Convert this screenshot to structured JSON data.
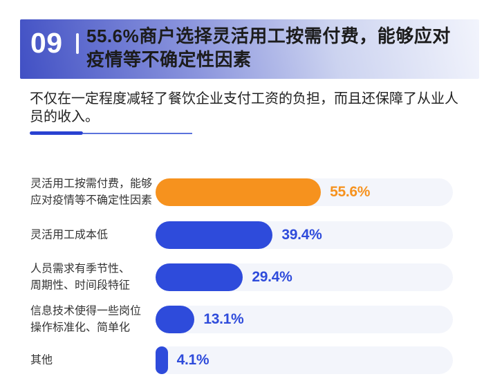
{
  "header": {
    "number": "09",
    "title": "55.6%商户选择灵活用工按需付费，能够应对\n疫情等不确定性因素"
  },
  "intro": "不仅在一定程度减轻了餐饮企业支付工资的负担，而且还保障了从业人\n员的收入。",
  "colors": {
    "banner_gradient_start": "#4150C4",
    "banner_gradient_end": "#F2F4FC",
    "accent_blue": "#2E4BDB",
    "accent_orange": "#F6921E",
    "track": "#F3F5FB",
    "divider_thick": "#2941D1",
    "divider_thin": "#5B72DC"
  },
  "chart_data": {
    "type": "bar",
    "orientation": "horizontal",
    "title": "55.6%商户选择灵活用工按需付费，能够应对疫情等不确定性因素",
    "categories": [
      "灵活用工按需付费，能够\n应对疫情等不确定性因素",
      "灵活用工成本低",
      "人员需求有季节性、\n周期性、时间段特征",
      "信息技术使得一些岗位\n操作标准化、简单化",
      "其他"
    ],
    "values": [
      55.6,
      39.4,
      29.4,
      13.1,
      4.1
    ],
    "value_labels": [
      "55.6%",
      "39.4%",
      "29.4%",
      "13.1%",
      "4.1%"
    ],
    "bar_colors": [
      "#F6921E",
      "#2E4BDB",
      "#2E4BDB",
      "#2E4BDB",
      "#2E4BDB"
    ],
    "xlim": [
      0,
      100
    ],
    "grid": false,
    "legend": false
  }
}
